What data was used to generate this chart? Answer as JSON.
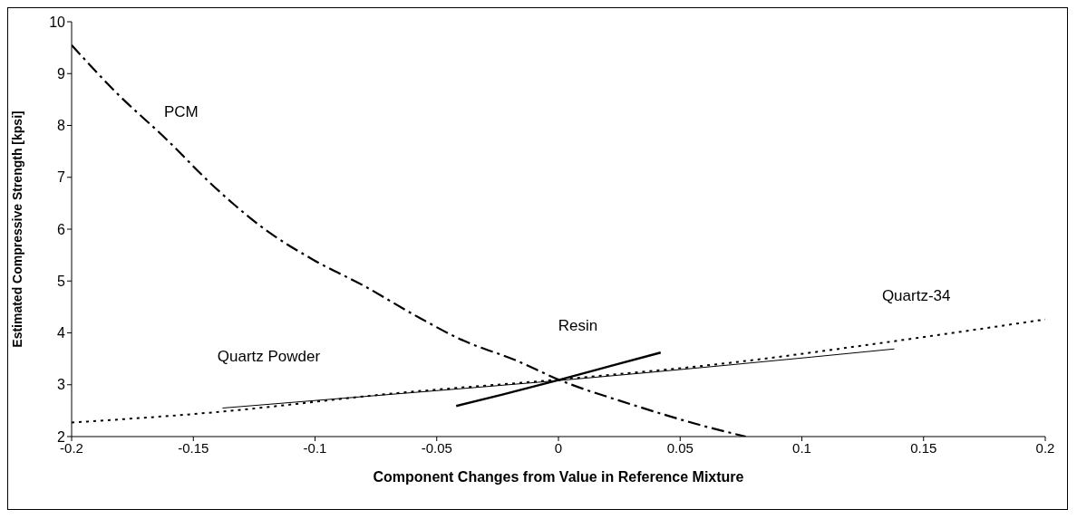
{
  "chart_data": {
    "type": "line",
    "xlabel": "Component Changes from Value in Reference Mixture",
    "ylabel": "Estimated Compressive Strength [kpsi]",
    "xlim": [
      -0.2,
      0.2
    ],
    "xticks": [
      -0.2,
      -0.15,
      -0.1,
      -0.05,
      0,
      0.05,
      0.1,
      0.15,
      0.2
    ],
    "ylim": [
      2,
      10
    ],
    "yticks": [
      2,
      3,
      4,
      5,
      6,
      7,
      8,
      9,
      10
    ],
    "grid": false,
    "legend": false,
    "marker": "none",
    "series": [
      {
        "name": "PCM",
        "color": "#000000",
        "line_style": "dashed",
        "x": [
          -0.2,
          -0.182,
          -0.161,
          -0.141,
          -0.121,
          -0.1,
          -0.08,
          -0.059,
          -0.039,
          -0.018,
          0,
          0.03,
          0.06,
          0.077
        ],
        "values": [
          9.55,
          8.65,
          7.73,
          6.8,
          6.01,
          5.39,
          4.91,
          4.34,
          3.85,
          3.48,
          3.1,
          2.62,
          2.2,
          2.0
        ]
      },
      {
        "name": "Quartz Powder",
        "color": "#000000",
        "line_style": "solid",
        "x": [
          -0.138,
          -0.07,
          0,
          0.07,
          0.138
        ],
        "values": [
          2.55,
          2.81,
          3.08,
          3.38,
          3.69
        ]
      },
      {
        "name": "Resin",
        "color": "#000000",
        "line_style": "solid",
        "x": [
          -0.042,
          -0.023,
          0,
          0.022,
          0.042
        ],
        "values": [
          2.59,
          2.81,
          3.09,
          3.37,
          3.62
        ]
      },
      {
        "name": "Quartz-34",
        "color": "#000000",
        "line_style": "dotted",
        "x": [
          -0.2,
          -0.141,
          -0.066,
          0,
          0.07,
          0.138,
          0.2
        ],
        "values": [
          2.27,
          2.47,
          2.84,
          3.1,
          3.42,
          3.84,
          4.26
        ]
      }
    ]
  }
}
